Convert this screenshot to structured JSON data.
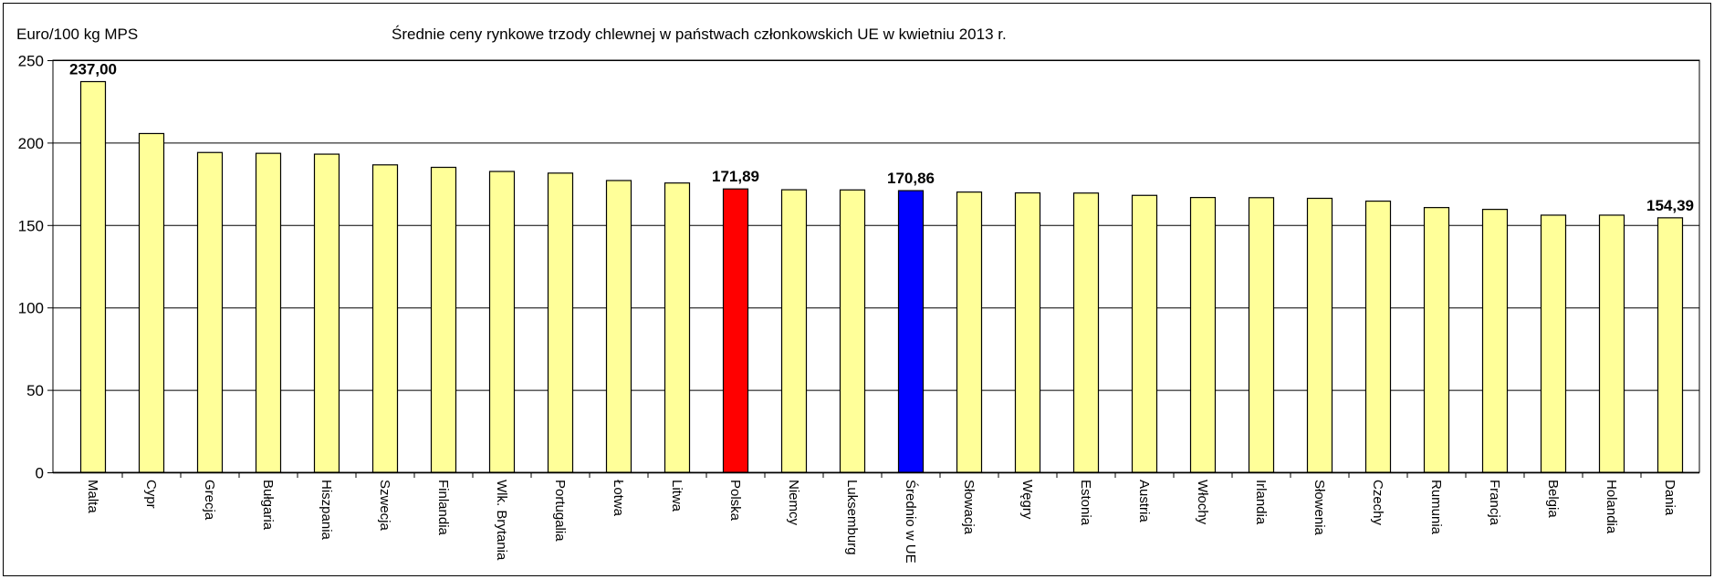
{
  "chart_data": {
    "type": "bar",
    "title": "Średnie ceny rynkowe trzody chlewnej w państwach członkowskich UE w kwietniu 2013 r.",
    "ylabel": "Euro/100 kg MPS",
    "xlabel": "",
    "ylim": [
      0,
      250
    ],
    "yticks": [
      0,
      50,
      100,
      150,
      200,
      250
    ],
    "grid": true,
    "categories": [
      "Malta",
      "Cypr",
      "Grecja",
      "Bułgaria",
      "Hiszpania",
      "Szwecja",
      "Finlandia",
      "Wlk. Brytania",
      "Portugalia",
      "Łotwa",
      "Litwa",
      "Polska",
      "Niemcy",
      "Luksemburg",
      "Średnio w UE",
      "Słowacja",
      "Węgry",
      "Estonia",
      "Austria",
      "Włochy",
      "Irlandia",
      "Słowenia",
      "Czechy",
      "Rumunia",
      "Francja",
      "Belgia",
      "Holandia",
      "Dania"
    ],
    "values": [
      237.0,
      205.5,
      194.0,
      193.5,
      193.0,
      186.5,
      185.0,
      182.5,
      181.5,
      177.0,
      175.5,
      171.89,
      171.4,
      171.3,
      170.86,
      170.0,
      169.5,
      169.4,
      168.0,
      166.7,
      166.6,
      166.2,
      164.5,
      160.6,
      159.5,
      156.0,
      156.0,
      154.39
    ],
    "data_labels": [
      {
        "category": "Malta",
        "text": "237,00"
      },
      {
        "category": "Polska",
        "text": "171,89"
      },
      {
        "category": "Średnio w UE",
        "text": "170,86"
      },
      {
        "category": "Dania",
        "text": "154,39"
      }
    ],
    "colors": {
      "default_bar": "#FFFF99",
      "highlight_poland": "#FF0000",
      "highlight_eu_average": "#0000FF",
      "gridline": "#000000"
    },
    "highlights": {
      "Polska": "highlight_poland",
      "Średnio w UE": "highlight_eu_average"
    }
  }
}
